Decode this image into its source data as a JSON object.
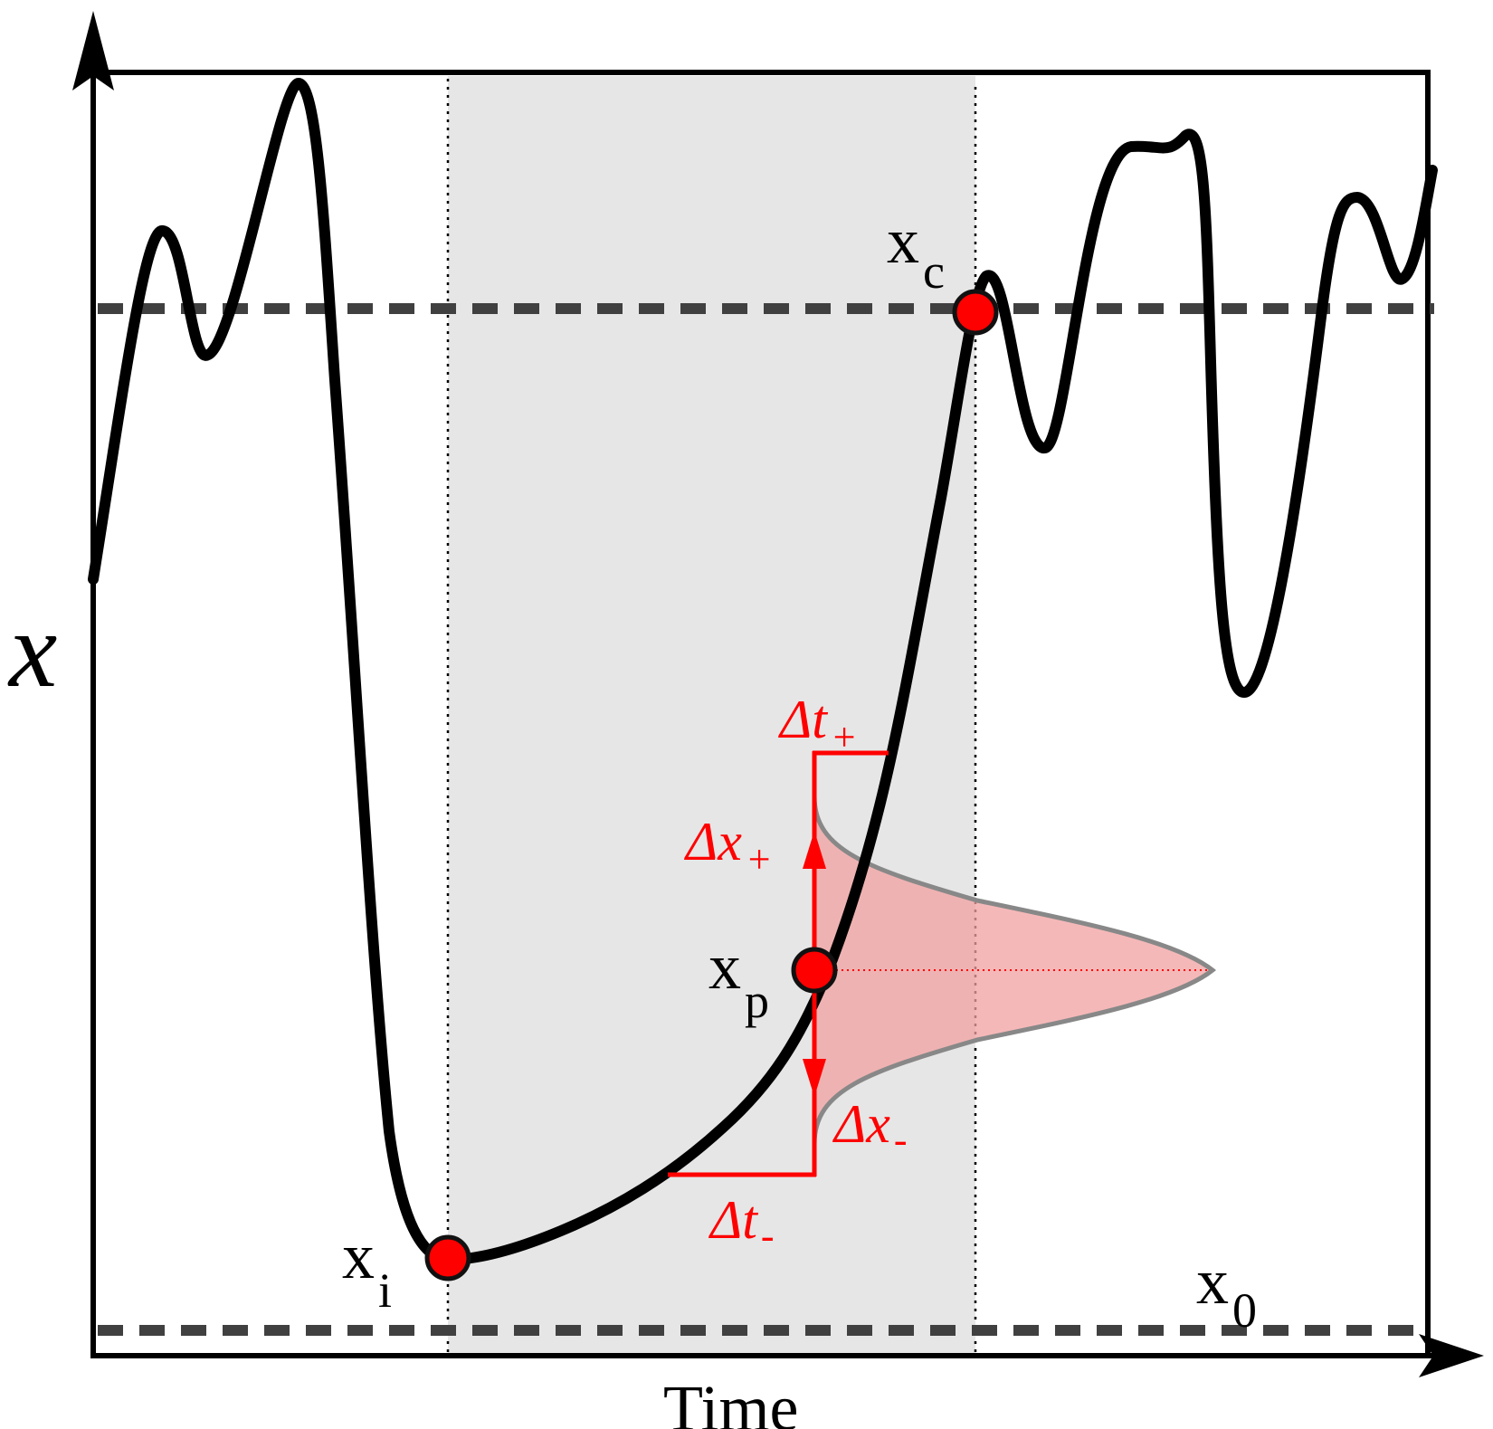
{
  "axes": {
    "y_label": "x",
    "x_label": "Time"
  },
  "points": {
    "initial": {
      "base": "x",
      "sub": "i"
    },
    "current": {
      "base": "x",
      "sub": "p"
    },
    "crossing": {
      "base": "x",
      "sub": "c"
    }
  },
  "levels": {
    "baseline": {
      "base": "x",
      "sub": "0"
    }
  },
  "increments": {
    "dt_plus": {
      "base": "Δt",
      "sub": "+"
    },
    "dt_minus": {
      "base": "Δt",
      "sub": "-"
    },
    "dx_plus": {
      "base": "Δx",
      "sub": "+"
    },
    "dx_minus": {
      "base": "Δx",
      "sub": "-"
    }
  },
  "colors": {
    "trajectory": "#000000",
    "highlight": "#ff0000",
    "window_fill": "#e6e6e6",
    "distribution_fill": "#f2a0a0",
    "threshold_dash": "#404040"
  }
}
